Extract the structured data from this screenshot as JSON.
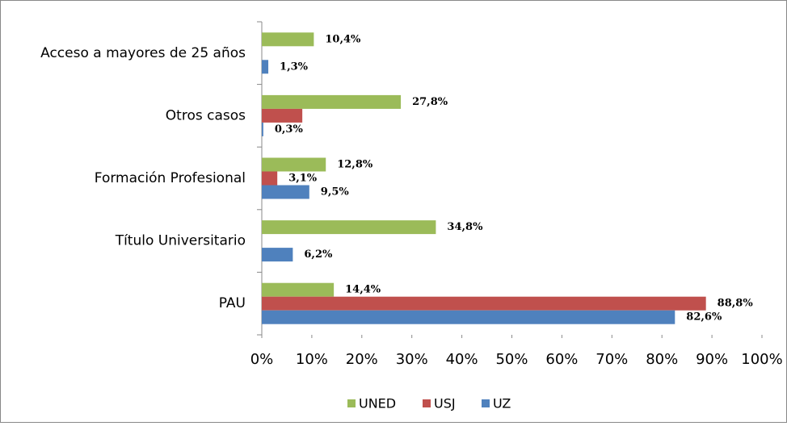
{
  "chart_data": {
    "type": "bar",
    "orientation": "horizontal",
    "categories": [
      "Acceso a mayores de 25 años",
      "Otros casos",
      "Formación Profesional",
      "Título Universitario",
      "PAU"
    ],
    "series": [
      {
        "name": "UNED",
        "color": "#9bbb59",
        "values": [
          10.4,
          27.8,
          12.8,
          34.8,
          14.4
        ],
        "value_labels": [
          "10,4%",
          "27,8%",
          "12,8%",
          "34,8%",
          "14,4%"
        ]
      },
      {
        "name": "USJ",
        "color": "#c0504d",
        "values": [
          null,
          8.1,
          3.1,
          null,
          88.8
        ],
        "value_labels": [
          null,
          null,
          "3,1%",
          null,
          "88,8%"
        ]
      },
      {
        "name": "UZ",
        "color": "#4f81bd",
        "values": [
          1.3,
          0.3,
          9.5,
          6.2,
          82.6
        ],
        "value_labels": [
          "1,3%",
          "0,3%",
          "9,5%",
          "6,2%",
          "82,6%"
        ]
      }
    ],
    "xlim": [
      0,
      100
    ],
    "xticks": [
      {
        "value": 0,
        "label": "0%"
      },
      {
        "value": 10,
        "label": "10%"
      },
      {
        "value": 20,
        "label": "20%"
      },
      {
        "value": 30,
        "label": "30%"
      },
      {
        "value": 40,
        "label": "40%"
      },
      {
        "value": 50,
        "label": "50%"
      },
      {
        "value": 60,
        "label": "60%"
      },
      {
        "value": 70,
        "label": "70%"
      },
      {
        "value": 80,
        "label": "80%"
      },
      {
        "value": 90,
        "label": "90%"
      },
      {
        "value": 100,
        "label": "100%"
      }
    ],
    "legend": "bottom"
  }
}
